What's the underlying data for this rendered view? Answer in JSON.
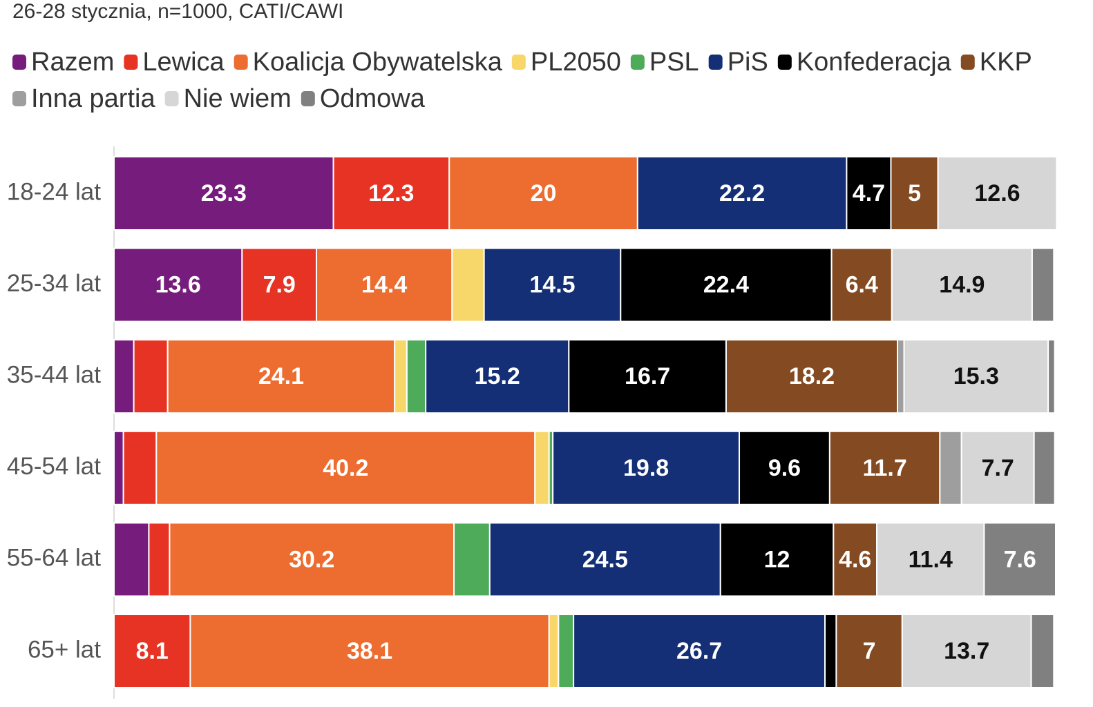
{
  "chart_data": {
    "type": "stacked-bar-horizontal",
    "subtitle": "26-28 stycznia, n=1000, CATI/CAWI",
    "categories": [
      "18-24 lat",
      "25-34 lat",
      "35-44 lat",
      "45-54 lat",
      "55-64 lat",
      "65+ lat"
    ],
    "xlim": [
      0,
      100
    ],
    "series": [
      {
        "name": "Razem",
        "color": "#751c7c",
        "values": [
          23.3,
          13.6,
          2.1,
          1.0,
          3.7,
          0
        ]
      },
      {
        "name": "Lewica",
        "color": "#e63323",
        "values": [
          12.3,
          7.9,
          3.6,
          3.5,
          2.2,
          8.1
        ]
      },
      {
        "name": "Koalicja Obywatelska",
        "color": "#ed6c30",
        "values": [
          20,
          14.4,
          24.1,
          40.2,
          30.2,
          38.1
        ]
      },
      {
        "name": "PL2050",
        "color": "#f7d66a",
        "values": [
          0,
          3.4,
          1.3,
          1.5,
          0,
          1.0
        ]
      },
      {
        "name": "PSL",
        "color": "#4dab5a",
        "values": [
          0,
          0,
          2.0,
          0.4,
          3.8,
          1.6
        ]
      },
      {
        "name": "PiS",
        "color": "#142f75",
        "values": [
          22.2,
          14.5,
          15.2,
          19.8,
          24.5,
          26.7
        ]
      },
      {
        "name": "Konfederacja",
        "color": "#000000",
        "values": [
          4.7,
          22.4,
          16.7,
          9.6,
          12,
          1.2
        ]
      },
      {
        "name": "KKP",
        "color": "#844a21",
        "values": [
          5,
          6.4,
          18.2,
          11.7,
          4.6,
          7
        ]
      },
      {
        "name": "Inna partia",
        "color": "#9e9e9e",
        "values": [
          0,
          0,
          0.7,
          2.3,
          0,
          0
        ]
      },
      {
        "name": "Nie wiem",
        "color": "#d6d6d6",
        "values": [
          12.6,
          14.9,
          15.3,
          7.7,
          11.4,
          13.7
        ]
      },
      {
        "name": "Odmowa",
        "color": "#808080",
        "values": [
          0,
          2.3,
          0.7,
          2.2,
          7.6,
          2.4
        ]
      }
    ]
  }
}
